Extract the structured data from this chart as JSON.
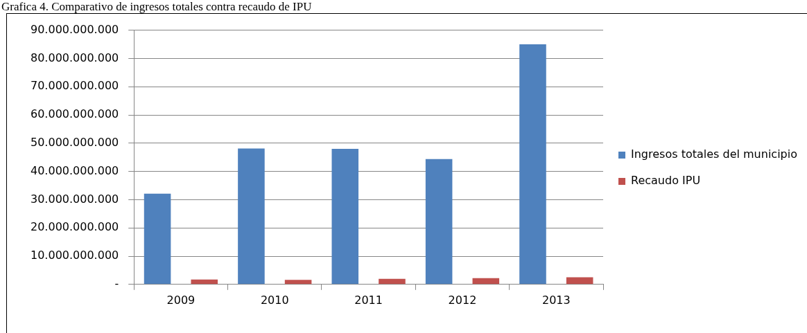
{
  "chart_data": {
    "type": "bar",
    "title": "Grafica 4. Comparativo de ingresos totales contra recaudo de IPU",
    "categories": [
      "2009",
      "2010",
      "2011",
      "2012",
      "2013"
    ],
    "series": [
      {
        "name": "Ingresos totales del municipio",
        "color": "#4f81bd",
        "values": [
          32100000000,
          48100000000,
          48000000000,
          44400000000,
          85000000000
        ]
      },
      {
        "name": "Recaudo IPU",
        "color": "#c0504d",
        "values": [
          1700000000,
          1600000000,
          2000000000,
          2200000000,
          2500000000
        ]
      }
    ],
    "ylim": [
      0,
      90000000000
    ],
    "yticks": [
      {
        "value": 0,
        "label": "-"
      },
      {
        "value": 10000000000,
        "label": "10.000.000.000"
      },
      {
        "value": 20000000000,
        "label": "20.000.000.000"
      },
      {
        "value": 30000000000,
        "label": "30.000.000.000"
      },
      {
        "value": 40000000000,
        "label": "40.000.000.000"
      },
      {
        "value": 50000000000,
        "label": "50.000.000.000"
      },
      {
        "value": 60000000000,
        "label": "60.000.000.000"
      },
      {
        "value": 70000000000,
        "label": "70.000.000.000"
      },
      {
        "value": 80000000000,
        "label": "80.000.000.000"
      },
      {
        "value": 90000000000,
        "label": "90.000.000.000"
      }
    ],
    "grid": "y",
    "legend": "right"
  }
}
